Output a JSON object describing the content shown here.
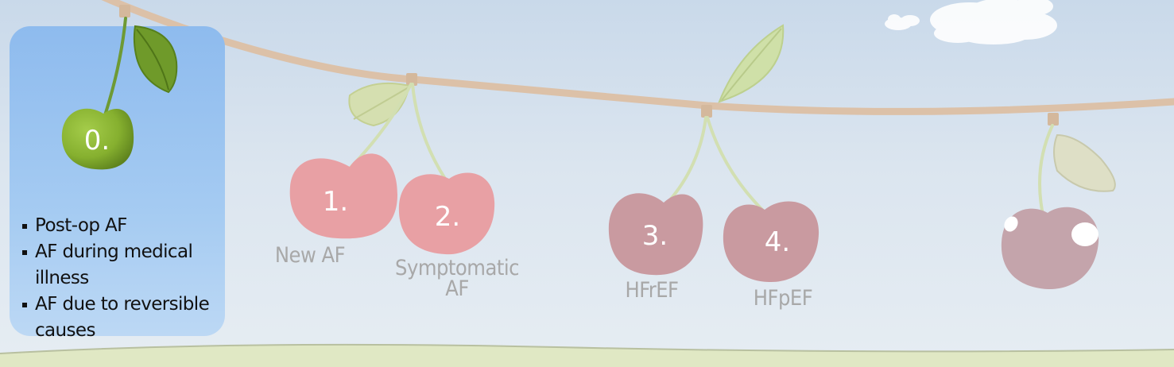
{
  "panel": {
    "number": "0.",
    "bullets": [
      "Post-op AF",
      "AF during medical illness",
      "AF due to reversible causes"
    ]
  },
  "cherries": [
    {
      "number": "1.",
      "label": "New AF"
    },
    {
      "number": "2.",
      "label_line1": "Symptomatic",
      "label_line2": "AF"
    },
    {
      "number": "3.",
      "label": "HFrEF"
    },
    {
      "number": "4.",
      "label": "HFpEF"
    }
  ],
  "colors": {
    "sky_top": "#c9d9ea",
    "panel_blue": "#9cc5f0",
    "green_cherry": "#86b02f",
    "pink_cherry": "#e8a0a4",
    "mauve_cherry": "#c49aa3",
    "branch": "#dcc1a8",
    "ground": "#e0e8c4"
  }
}
